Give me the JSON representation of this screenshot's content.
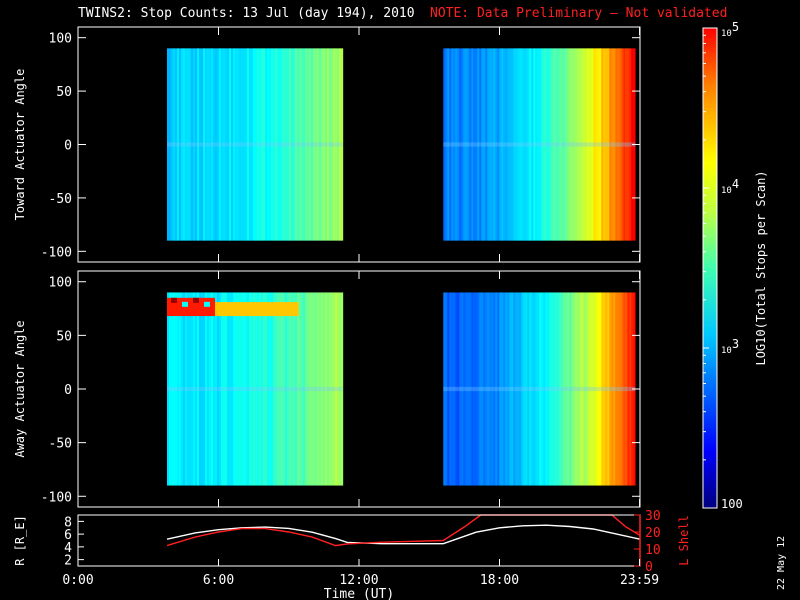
{
  "title": "TWINS2: Stop Counts: 13 Jul (day 194), 2010",
  "note": "NOTE: Data Preliminary — Not validated",
  "date_stamp": "22 May 12",
  "colors": {
    "background": "#000000",
    "axes": "#ffffff",
    "note": "#ff2020",
    "radius_line": "#ffffff",
    "lshell_line": "#ff2020"
  },
  "chart_data": [
    {
      "type": "heatmap",
      "panel": "toward",
      "ylabel": "Toward Actuator Angle",
      "ylim": [
        -110,
        110
      ],
      "yticks": [
        100,
        50,
        0,
        -50,
        -100
      ],
      "xlim_hours": [
        0,
        24
      ],
      "segments": [
        {
          "start_h": 3.8,
          "end_h": 11.3,
          "angle_range": [
            -90,
            90
          ],
          "level_start": 0.33,
          "level_end": 0.55
        },
        {
          "start_h": 15.6,
          "end_h": 23.8,
          "angle_range": [
            -90,
            90
          ],
          "level_start": 0.25,
          "level_end": 0.9
        }
      ]
    },
    {
      "type": "heatmap",
      "panel": "away",
      "ylabel": "Away Actuator Angle",
      "ylim": [
        -110,
        110
      ],
      "yticks": [
        100,
        50,
        0,
        -50,
        -100
      ],
      "xlim_hours": [
        0,
        24
      ],
      "segments": [
        {
          "start_h": 3.8,
          "end_h": 11.3,
          "angle_range": [
            -90,
            90
          ],
          "level_start": 0.35,
          "level_end": 0.55,
          "hot_band_deg": [
            68,
            85
          ]
        },
        {
          "start_h": 15.6,
          "end_h": 23.8,
          "angle_range": [
            -90,
            90
          ],
          "level_start": 0.22,
          "level_end": 0.88
        }
      ]
    },
    {
      "type": "line",
      "panel": "orbit",
      "xlabel": "Time (UT)",
      "xticks": [
        "0:00",
        "6:00",
        "12:00",
        "18:00",
        "23:59"
      ],
      "xtick_hours": [
        0,
        6,
        12,
        18,
        23.98
      ],
      "ylabel_left": "R [R_E]",
      "ylim_left": [
        1,
        9
      ],
      "yticks_left": [
        8,
        6,
        4,
        2
      ],
      "ylabel_right": "L Shell",
      "ylim_right": [
        0,
        30
      ],
      "yticks_right": [
        30,
        20,
        10,
        0
      ],
      "series": [
        {
          "axis": "left",
          "color": "white",
          "x": [
            3.8,
            5,
            6,
            7,
            8,
            9,
            10,
            11,
            11.5,
            13,
            15.6,
            17,
            18,
            19,
            20,
            21,
            22,
            23,
            24
          ],
          "y": [
            5.2,
            6.2,
            6.7,
            7.0,
            7.1,
            6.9,
            6.3,
            5.3,
            4.7,
            4.5,
            4.5,
            6.3,
            7.0,
            7.3,
            7.4,
            7.2,
            6.8,
            6.0,
            5.2
          ]
        },
        {
          "axis": "right",
          "color": "red",
          "x": [
            3.8,
            5,
            6,
            7,
            8,
            9,
            10,
            11,
            11.5,
            13,
            15.6,
            16.5,
            17.2,
            22.8,
            23.4,
            24
          ],
          "y": [
            12,
            17,
            20,
            22,
            22,
            20,
            17,
            12,
            13,
            14,
            15,
            23,
            30,
            30,
            23,
            18
          ]
        }
      ]
    },
    {
      "type": "heatmap",
      "panel": "colorbar",
      "label": "LOG10(Total Stops per Scan)",
      "range_log": [
        2,
        5
      ],
      "tick_labels": [
        "10^5",
        "10^4",
        "10^3",
        "100"
      ],
      "tick_values": [
        100000,
        10000,
        1000,
        100
      ]
    }
  ]
}
